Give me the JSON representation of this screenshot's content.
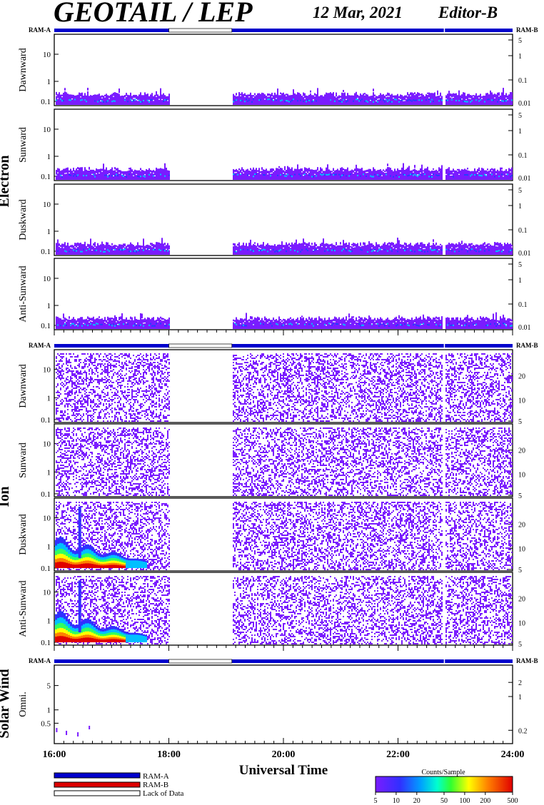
{
  "header": {
    "title": "GEOTAIL / LEP",
    "date": "12 Mar, 2021",
    "editor": "Editor-B"
  },
  "colors": {
    "ram_a": "#0000cc",
    "ram_b": "#dd0000",
    "lack_of_data": "#ffffff",
    "spectrogram_low": "#7a1cff",
    "spectrogram_high": "#e00000"
  },
  "sections": [
    {
      "label": "Electron",
      "panels": [
        "Dawnward",
        "Sunward",
        "Duskward",
        "Anti-Sunward"
      ]
    },
    {
      "label": "Ion",
      "panels": [
        "Dawnward",
        "Sunward",
        "Duskward",
        "Anti-Sunward"
      ]
    },
    {
      "label": "Solar Wind",
      "panels": [
        "Omni."
      ]
    }
  ],
  "ram_bar_labels": {
    "left": "RAM-A",
    "right": "RAM-B"
  },
  "axes": {
    "left_ticks_main": [
      "10",
      "1",
      "0.1"
    ],
    "electron_right_ticks": [
      "5",
      "1",
      "0.1",
      "0.01"
    ],
    "ion_right_ticks": [
      "20",
      "10",
      "5"
    ],
    "solarwind_left_ticks": [
      "5",
      "1",
      "0.5"
    ],
    "solarwind_right_ticks": [
      "2",
      "1",
      "0.2"
    ],
    "time_ticks": [
      "16:00",
      "18:00",
      "20:00",
      "22:00",
      "24:00"
    ],
    "xlabel": "Universal Time"
  },
  "legend": {
    "ram_a": "RAM-A",
    "ram_b": "RAM-B",
    "lack": "Lack of Data",
    "colorbar_title": "Counts/Sample",
    "colorbar_ticks": [
      "5",
      "10",
      "20",
      "50",
      "100",
      "200",
      "500"
    ]
  },
  "chart_data": {
    "type": "heatmap",
    "title": "GEOTAIL / LEP",
    "xlabel": "Universal Time",
    "x_range": [
      "16:00",
      "24:00"
    ],
    "data_gaps": [
      {
        "start": "18:00",
        "end": "19:06"
      },
      {
        "start": "22:48",
        "end": "22:49"
      }
    ],
    "electron_panels_y_range_keV": [
      0.08,
      40
    ],
    "ion_panels_y_range_keV": [
      0.08,
      40
    ],
    "solarwind_y_range_keV": [
      0.25,
      8
    ],
    "color_scale": {
      "label": "Counts/Sample",
      "min": 5,
      "max": 500,
      "log": true
    },
    "ion_low_energy_enhancement": {
      "panels": [
        "Duskward",
        "Anti-Sunward"
      ],
      "start": "16:00",
      "end": "17:30",
      "peak_counts": 500
    }
  }
}
